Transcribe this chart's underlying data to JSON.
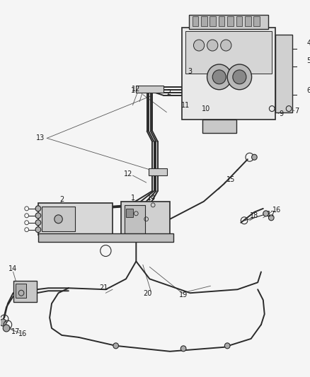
{
  "bg_color": "#f5f5f5",
  "line_color": "#2a2a2a",
  "label_color": "#1a1a1a",
  "leader_color": "#555555",
  "fig_width": 4.38,
  "fig_height": 5.33,
  "dpi": 100,
  "lw_main": 1.4,
  "lw_thin": 0.8,
  "lw_leader": 0.6,
  "label_fs": 7.0
}
